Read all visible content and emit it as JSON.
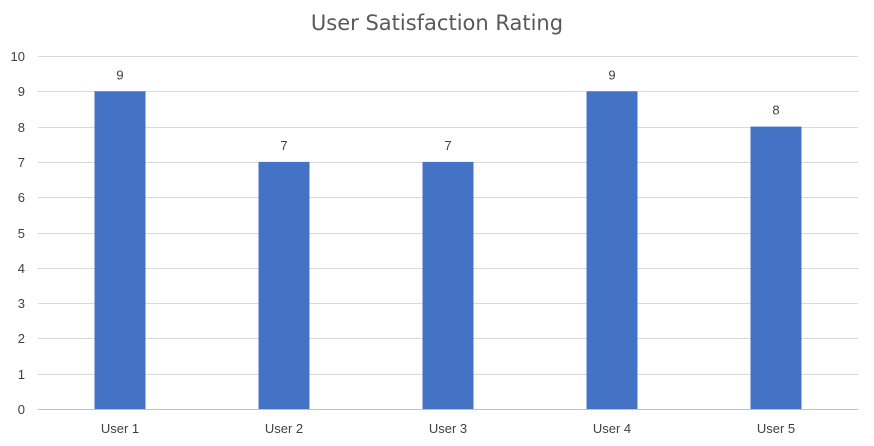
{
  "chart_data": {
    "type": "bar",
    "title": "User Satisfaction Rating",
    "xlabel": "",
    "ylabel": "",
    "categories": [
      "User 1",
      "User 2",
      "User 3",
      "User 4",
      "User 5"
    ],
    "values": [
      9,
      7,
      7,
      9,
      8
    ],
    "ylim": [
      0,
      10
    ],
    "yticks": [
      0,
      1,
      2,
      3,
      4,
      5,
      6,
      7,
      8,
      9,
      10
    ],
    "grid": true,
    "legend": "none",
    "bar_color": "#4472c4",
    "data_labels": true
  }
}
